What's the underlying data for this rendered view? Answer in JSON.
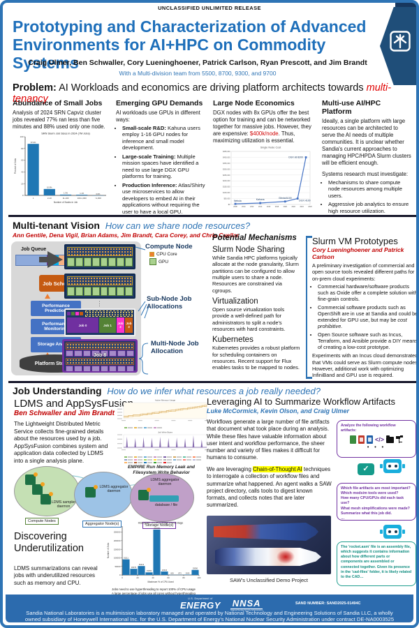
{
  "classification": "UNCLASSIFIED UNLIMITED RELEASE",
  "header": {
    "title_line1": "Prototyping and Characterization of Advanced",
    "title_line2": "Environments for AI+HPC on Commodity Systems",
    "authors": "Craig Ulmer, Ben Schwaller, Cory Lueninghoener, Patrick Carlson, Ryan Prescott, and Jim Brandt",
    "team": "With a Multi-division team from 5500, 8700, 9300, and 9700"
  },
  "problem": {
    "heading_label": "Problem:",
    "heading_text": " AI Workloads and economics are driving platform architects towards ",
    "heading_emphasis": "multi-tenancy",
    "col1": {
      "title": "Abundance of Small Jobs",
      "body": "Analysis of 2024 SRN Capviz cluster jobs revealed 77% ran less than five minutes and 88% used only one node."
    },
    "col2": {
      "title": "Emerging GPU Demands",
      "intro": "AI workloads use GPUs in different ways:",
      "bullets": [
        {
          "lead": "Small-scale R&D:",
          "text": " Kahuna users employ 1-16 GPU nodes for inference and small model development."
        },
        {
          "lead": "Large-scale Training:",
          "text": " Multiple mission spaces have identified a need to use large DGX GPU platforms for training."
        },
        {
          "lead": "Production Inference:",
          "text": " Atlas/Shirty use microservices to allow developers to embed AI in their applications without requiring the user to have a local GPU."
        }
      ]
    },
    "col3": {
      "title": "Large Node Economics",
      "body_pre": "DGX nodes with 8x GPUs offer the best option for training and can be networked together for massive jobs. However, they are expensive: ",
      "body_red": "$400k/node",
      "body_post": ". Thus, maximizing utilization is essential."
    },
    "col4": {
      "title": "Multi-use AI/HPC Platform",
      "body": "Ideally, a single platform with large resources can be architected to serve the AI needs of multiple communities. It is unclear whether Sandia's current approaches to managing HPC/HPDA Slurm clusters will be efficient enough.",
      "intro2": "Systems research must investigate:",
      "bullets": [
        "Mechanisms to share compute node resources among multiple users.",
        "Aggressive job analytics to ensure high resource utilization."
      ]
    }
  },
  "vision": {
    "heading": "Multi-tenant Vision",
    "subheading": "How can we share node resources?",
    "authors": "Ann Gentile, Dena Vigil, Brian Adams, Jim Brandt, Cara Corey, and Chris Cuellar",
    "diagram": {
      "job_queue": "Job Queue",
      "job_scheduler": "Job Scheduler",
      "perf_prediction": "Performance Prediction",
      "perf_monitoring": "Performance Monitoring",
      "storage_analysis": "Storage Analysis",
      "platform_storage": "Platform Storage",
      "legend_compute": "Compute Node",
      "legend_cpu": "CPU Core",
      "legend_gpu": "GPU",
      "subnode_label": "Sub-Node Job Allocations",
      "multinode_label": "Multi-Node Job Allocation",
      "jobs": [
        "Job 0",
        "Job 1",
        "Job 2",
        "Job 3"
      ],
      "multinode_job": "Job 8",
      "gpus_per_node": 8
    },
    "mechanisms": {
      "heading": "Potential Mechanisms",
      "sections": [
        {
          "title": "Slurm Node Sharing",
          "body": "While Sandia HPC platforms typically allocate at the node granularity, Slurm partitions can be configured to allow multiple users to share a node. Resources are constrained via cgroups."
        },
        {
          "title": "Virtualization",
          "body": "Open source virtualization tools provide a well-defined path for administrators to split a node's resources with hard constraints."
        },
        {
          "title": "Kubernetes",
          "body": "Kubernetes provides a robust platform for scheduling containers on resources. Recent support for Flux enables tasks to be mapped to nodes."
        }
      ]
    },
    "prototypes": {
      "title": "Slurm VM Prototypes",
      "authors": "Cory Lueninghoener and Patrick Carlson",
      "intro": "A preliminary investigation of commercial and open source tools revealed different paths for on-prem cloud experiments:",
      "bullets": [
        {
          "pre": "Commercial hardware/software products such as Oxide offer a complete solution with fine-grain controls.",
          "italic": ""
        },
        {
          "pre": "Commercial software products such as OpenShift are in use at Sandia and could be extended for GPU use, but may be ",
          "italic": "cost prohibitive."
        },
        {
          "pre": "Open Source software such as Incus, Terraform, and Ansible provide a DIY means of creating a low-cost prototype.",
          "italic": ""
        }
      ],
      "outro": "Experiments with an Incus cloud demonstrated that VMs could serve as Slurm compute nodes. However, additional work with optimizing InfiniBand and GPU use is required."
    }
  },
  "job_understanding": {
    "heading": "Job Understanding",
    "subheading": "How do we infer what resources a job really needed?",
    "ldms": {
      "title": "LDMS and AppSysFusion",
      "authors": "Ben Schwaller and Jim Brandt",
      "body": "The Lightweight Distributed Metric Service collects fine-grained details about the resources used by a job. AppSysFusion combines system and application data collected by LDMS into a single analysis plane.",
      "caption_line1": "EMPIRE Run Memory Leak and",
      "caption_line2": "Filesystem Write Behavior"
    },
    "pipeline": {
      "sampler": "LDMS sampler daemon",
      "aggregator": "LDMS aggregator daemon",
      "aggregator2": "LDMS aggregator daemon",
      "database": "database / file",
      "labels": [
        "Compute Nodes",
        "Aggregator Node(s)",
        "Storage Node(s)"
      ]
    },
    "underutilization": {
      "title": "Discovering Underutilization",
      "body": "LDMS summarizations can reveal jobs with underutilized resources such as memory and CPU."
    },
    "ai": {
      "title": "Leveraging AI to Summarize Workflow Artifacts",
      "authors": "Luke McCormick, Kevin Olson, and Craig Ulmer",
      "para1": "Workflows generate a large number of file artifacts that document what took place during an analysis. While these files have valuable information about user intent and workflow performance, the sheer number and variety of files makes it difficult for humans to consume.",
      "para2_pre": "We are leveraging ",
      "para2_highlight": "Chain-of-Thought AI",
      "para2_post": " techniques to interrogate a collection of workflow files and summarize what happened. An agent walks a SAW project directory, calls tools to digest known formats, and collects notes that are later summarized.",
      "image_caption": "SAW's Unclassified Demo Project"
    },
    "chat": {
      "bubble1": "Analyze the following workflow artifacts:",
      "check_icon": "✓",
      "bubble2_lines": [
        "Which file artifacts are most important?",
        "Which modsim tools were used?",
        "How many CPU/GPUs did each task use?",
        "What mesh simplifications were made?",
        "Summarize what this job did.",
        "…"
      ],
      "bubble3": "The 'rocket.asm' file is an assembly file, which suggests it contains information about how different parts or components are assembled or connected together. Given its presence in the 'cad-files' folder, it is likely related to the CAD…"
    }
  },
  "footer": {
    "energy_dept": "U.S. Department of",
    "energy": "ENERGY",
    "nnsa": "NNSA",
    "nnsa_sub": "National Nuclear Security Administration",
    "sand_number": "SAND NUMBER: SAND2025-01494C",
    "disclaimer": "Sandia National Laboratories is a multimission laboratory managed and operated by National Technology and Engineering Solutions of Sandia LLC, a wholly owned subsidiary of Honeywell International Inc. for the U.S. Department of Energy's National Nuclear Security Administration under contract DE-NA0003525"
  },
  "chart_data": [
    {
      "id": "srn_jobs",
      "type": "bar",
      "title": "SRN Slurm Job Sizes in 2024 (7M Jobs)",
      "categories": [
        "1",
        "2-10",
        "11-100",
        "100-1,000",
        ">1,000"
      ],
      "values": [
        87.9,
        10.9,
        1.3,
        1.1,
        0.0
      ],
      "value_labels": [
        "87.9%",
        "10.9%",
        "1.3%",
        "1.1%",
        "0.0%"
      ],
      "xlabel": "Number of Nodes in Job",
      "ylabel": "Percent of Jobs",
      "ylim": [
        0,
        100
      ],
      "yticks": [
        0,
        20,
        40,
        60,
        80,
        100
      ],
      "bar_color": "#1F77B4",
      "ml": 18,
      "barw": 0.7
    },
    {
      "id": "node_cost",
      "type": "line",
      "title": "Single Node Cost",
      "x": [
        2008,
        2014,
        2020,
        2023,
        2025
      ],
      "y": [
        5000,
        12000,
        25000,
        50000,
        400000
      ],
      "point_labels": [
        "Nebula",
        "Kahuna",
        "Glinda/A100",
        "DGX H100",
        "DGX x8 B200"
      ],
      "label_anchors": [
        "start",
        "middle",
        "middle",
        "start",
        "end"
      ],
      "label_offsets": [
        [
          -2,
          -3
        ],
        [
          0,
          -4
        ],
        [
          0,
          -4
        ],
        [
          2,
          4
        ],
        [
          -4,
          1
        ]
      ],
      "xlim": [
        2007,
        2026
      ],
      "xticks": [
        2008,
        2010,
        2012,
        2014,
        2016,
        2018,
        2020,
        2022,
        2024,
        2026
      ],
      "ylim": [
        0,
        450000
      ],
      "ytick_step": 50000,
      "currency": true,
      "line_color": "#4472C4"
    },
    {
      "id": "memory_leak",
      "type": "steps",
      "title": "Active Memory Usage",
      "values": [
        16,
        16,
        20,
        20,
        24,
        24,
        24,
        28,
        30,
        30,
        34,
        34,
        38,
        40,
        40,
        44,
        46,
        46,
        50,
        52,
        54,
        54,
        58,
        60,
        62,
        64,
        64,
        68,
        70,
        72,
        74,
        76,
        78,
        82,
        84,
        88
      ],
      "color": "#E2BE7F",
      "legend_count": 4
    },
    {
      "id": "write_bytes",
      "type": "spikes",
      "title": "Job Write Bytes",
      "positions": [
        4,
        14,
        24,
        34,
        44,
        54,
        64,
        74,
        84,
        94
      ],
      "heights": [
        80,
        70,
        76,
        72,
        78,
        70,
        74,
        68,
        90,
        58
      ],
      "color": "#7B5EA7",
      "legend_count": 21
    },
    {
      "id": "cpu_hist",
      "type": "bar",
      "title": "Histogram of CPU Usage Percentage",
      "categories": [
        "0-10",
        "10-20",
        "20-30",
        "30-40",
        "40-50",
        "50-60",
        "60-70",
        "70-80",
        "80-90",
        "90-100"
      ],
      "values": [
        91111,
        36079,
        52213,
        15253,
        264635,
        20344,
        609,
        873,
        2025,
        29390
      ],
      "value_labels": [
        "91111",
        "36079",
        "52213",
        "15253",
        "264635",
        "20344",
        "609",
        "873",
        "2025",
        "29390"
      ],
      "xlabel": "Maximum % of CPU Used",
      "ylabel": "Number of Jobs",
      "ylim": [
        0,
        285000
      ],
      "yticks": [
        0,
        50000,
        100000,
        150000,
        200000,
        250000
      ],
      "xlim": [
        0,
        100
      ],
      "xticks": [
        0,
        20,
        40,
        60,
        80,
        100
      ],
      "bar_color": "#1F77B4",
      "ml": 24,
      "barw": 0.92,
      "captions": [
        "Jobs need to use hyperthreading to report 100% of CPU usage",
        "A large percentage of jobs use all cores without hyperthreading"
      ]
    }
  ]
}
